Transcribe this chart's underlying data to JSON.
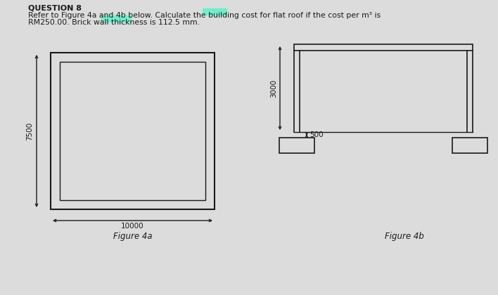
{
  "bg_color": "#dcdcdc",
  "question_title": "QUESTION 8",
  "question_text_line1": "Refer to Figure 4a and 4b below. Calculate the building cost for flat roof if the cost per m³ is",
  "question_text_line2": "RM250.00. Brick wall thickness is 112.5 mm.",
  "fig4a_label": "Figure 4a",
  "fig4b_label": "Figure 4b",
  "dim_7500": "7500",
  "dim_10000": "10000",
  "dim_3000": "3000",
  "dim_500": "500",
  "line_color": "#1a1a1a",
  "highlight_cyan": "#70eecc",
  "text_color": "#1a1a1a",
  "title_fontsize": 8.0,
  "body_fontsize": 7.8,
  "dim_fontsize": 7.5,
  "label_fontsize": 8.5
}
